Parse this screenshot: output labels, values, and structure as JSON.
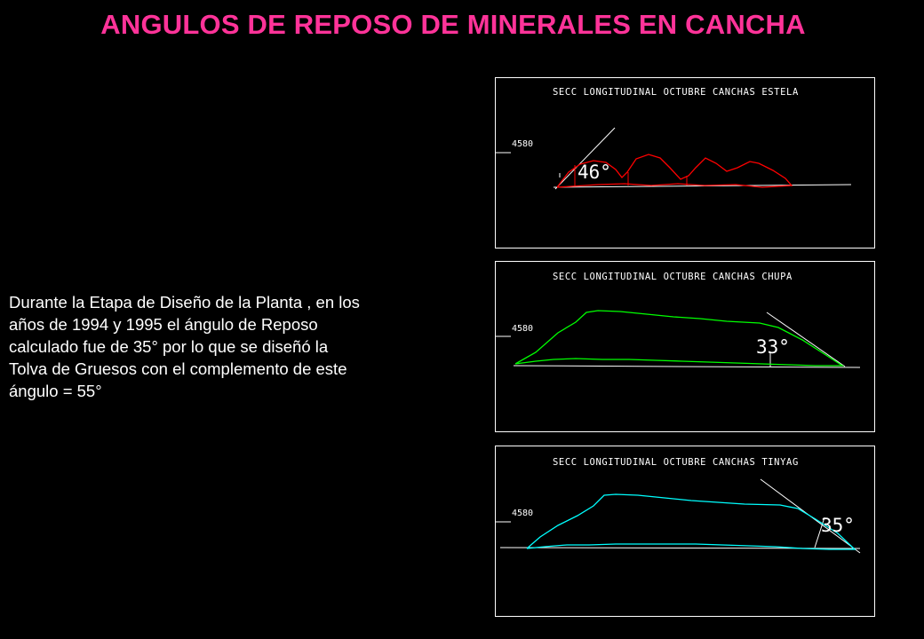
{
  "title": "ANGULOS DE REPOSO DE MINERALES EN CANCHA",
  "description": [
    "Durante la Etapa de Diseño de la Planta , en los",
    "años de 1994 y 1995 el ángulo  de Reposo",
    "calculado fue de 35° por lo que se diseñó la",
    "Tolva   de Gruesos con el complemento de este",
    "ángulo = 55°"
  ],
  "sections": [
    {
      "heading": "SECC LONGITUDINAL OCTUBRE CANCHAS ESTELA",
      "elevation": "4580",
      "angle": "46°",
      "profile_color": "#ff0000"
    },
    {
      "heading": "SECC LONGITUDINAL OCTUBRE CANCHAS CHUPA",
      "elevation": "4580",
      "angle": "33°",
      "profile_color": "#00ff00"
    },
    {
      "heading": "SECC LONGITUDINAL OCTUBRE CANCHAS TINYAG",
      "elevation": "4580",
      "angle": "35°",
      "profile_color": "#00ffff"
    }
  ],
  "colors": {
    "title": "#ff3399",
    "text": "#ffffff",
    "background": "#000000"
  }
}
